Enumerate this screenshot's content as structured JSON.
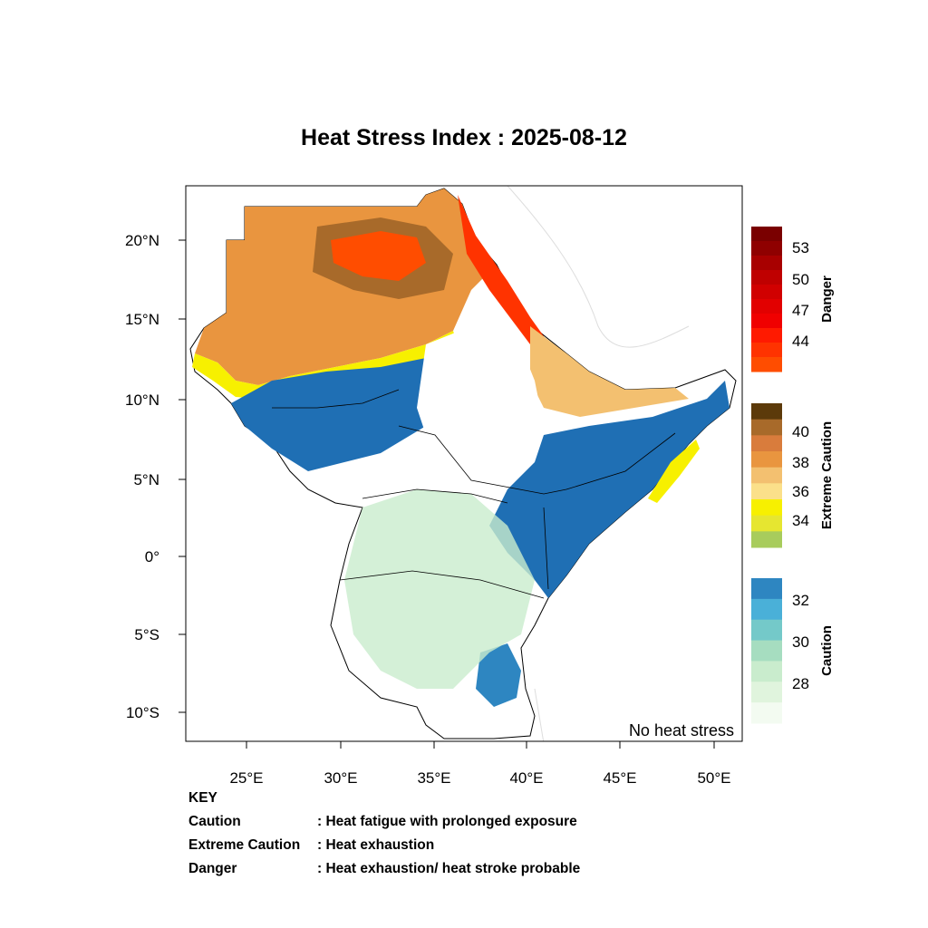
{
  "title": "Heat Stress Index : 2025-08-12",
  "map": {
    "lat_ticks": [
      "20°N",
      "15°N",
      "10°N",
      "5°N",
      "0°",
      "5°S",
      "10°S"
    ],
    "lon_ticks": [
      "25°E",
      "30°E",
      "35°E",
      "40°E",
      "45°E",
      "50°E"
    ],
    "no_stress_label": "No heat stress"
  },
  "legend": {
    "danger": {
      "title": "Danger",
      "ticks": [
        "53",
        "50",
        "47",
        "44"
      ],
      "colors": [
        "#7a0000",
        "#8f0000",
        "#a80000",
        "#bf0000",
        "#d10000",
        "#e20000",
        "#f00000",
        "#ff1a00",
        "#ff3300",
        "#ff4d00"
      ]
    },
    "extreme": {
      "title": "Extreme Caution",
      "ticks": [
        "40",
        "38",
        "36",
        "34"
      ],
      "colors": [
        "#5c3a0a",
        "#a86a2a",
        "#d97c3c",
        "#e9953f",
        "#f3c070",
        "#fbe08a",
        "#f7f000",
        "#e6e630",
        "#a8cc5c"
      ]
    },
    "caution": {
      "title": "Caution",
      "ticks": [
        "32",
        "30",
        "28"
      ],
      "colors": [
        "#2e86c1",
        "#4ab0d8",
        "#74c9c9",
        "#a6ddc0",
        "#c9eccd",
        "#e0f4dd",
        "#f3fbf1"
      ]
    }
  },
  "key": {
    "heading": "KEY",
    "rows": [
      {
        "term": "Caution",
        "desc": ": Heat fatigue with prolonged exposure"
      },
      {
        "term": "Extreme Caution",
        "desc": " : Heat exhaustion"
      },
      {
        "term": "Danger",
        "desc": ": Heat exhaustion/ heat stroke probable"
      }
    ]
  }
}
